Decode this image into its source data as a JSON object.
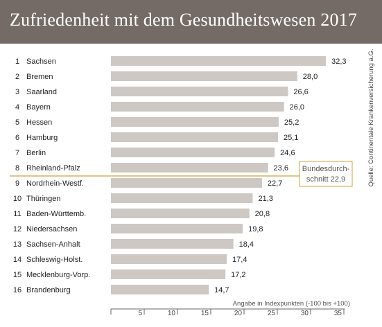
{
  "title": "Zufriedenheit mit dem Gesundheitswesen 2017",
  "source": "Quelle: Continentale Krankenversicherung a.G.",
  "axis_note": "Angabe in Indexpunkten (-100 bis +100)",
  "average": {
    "line1": "Bundesdurch-",
    "line2": "schnitt 22,9",
    "value": 22.9
  },
  "colors": {
    "header": "#746b66",
    "bar": "#cdc8c3",
    "avg_line": "#c9a43a"
  },
  "chart_data": {
    "type": "bar",
    "orientation": "horizontal",
    "ranks": [
      "1",
      "2",
      "3",
      "4",
      "5",
      "6",
      "7",
      "8",
      "9",
      "10",
      "11",
      "12",
      "13",
      "14",
      "15",
      "16"
    ],
    "categories": [
      "Sachsen",
      "Bremen",
      "Saarland",
      "Bayern",
      "Hessen",
      "Hamburg",
      "Berlin",
      "Rheinland-Pfalz",
      "Nordrhein-Westf.",
      "Thüringen",
      "Baden-Württemb.",
      "Niedersachsen",
      "Sachsen-Anhalt",
      "Schleswig-Holst.",
      "Mecklenburg-Vorp.",
      "Brandenburg"
    ],
    "values": [
      32.3,
      28.0,
      26.6,
      26.0,
      25.2,
      25.1,
      24.6,
      23.6,
      22.7,
      21.3,
      20.8,
      19.8,
      18.4,
      17.4,
      17.2,
      14.7
    ],
    "value_labels": [
      "32,3",
      "28,0",
      "26,6",
      "26,0",
      "25,2",
      "25,1",
      "24,6",
      "23,6",
      "22,7",
      "21,3",
      "20,8",
      "19,8",
      "18,4",
      "17,4",
      "17,2",
      "14,7"
    ],
    "xticks": [
      "5",
      "10",
      "15",
      "20",
      "25",
      "30",
      "35"
    ],
    "xtick_values": [
      5,
      10,
      15,
      20,
      25,
      30,
      35
    ],
    "xlim": [
      0,
      35
    ]
  }
}
